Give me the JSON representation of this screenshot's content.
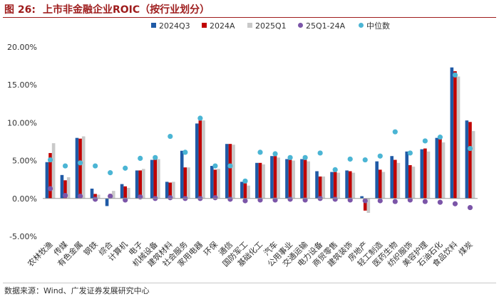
{
  "figure": {
    "number": "图 26:",
    "title": "上市非金融企业ROIC（按行业划分）",
    "source": "数据来源：Wind、广发证券发展研究中心"
  },
  "chart_data": {
    "type": "bar",
    "title": "",
    "xlabel": "",
    "ylabel": "",
    "ylim": [
      -5,
      20
    ],
    "yticks": [
      -5,
      0,
      5,
      10,
      15,
      20
    ],
    "ytick_labels": [
      "-5.00%",
      "0.00%",
      "5.00%",
      "10.00%",
      "15.00%",
      "20.00%"
    ],
    "grid": false,
    "legend_position": "top",
    "categories": [
      "农林牧渔",
      "传媒",
      "有色金属",
      "钢铁",
      "综合",
      "计算机",
      "电子",
      "机械设备",
      "建筑材料",
      "社会服务",
      "家用电器",
      "环保",
      "通信",
      "国防军工",
      "基础化工",
      "汽车",
      "公用事业",
      "交通运输",
      "电力设备",
      "商贸零售",
      "建筑装饰",
      "房地产",
      "轻工制造",
      "医药生物",
      "纺织服饰",
      "美容护理",
      "石油石化",
      "食品饮料",
      "煤炭"
    ],
    "series": [
      {
        "name": "2024Q3",
        "kind": "bar",
        "color": "#1f5aa6",
        "values": [
          4.8,
          3.1,
          8.0,
          1.3,
          -1.0,
          1.9,
          3.7,
          5.1,
          2.2,
          6.3,
          9.9,
          4.3,
          7.2,
          2.2,
          4.7,
          5.6,
          5.2,
          5.2,
          3.6,
          3.5,
          3.7,
          0.3,
          4.9,
          5.6,
          6.2,
          6.5,
          8.0,
          17.3,
          10.3
        ]
      },
      {
        "name": "2024A",
        "kind": "bar",
        "color": "#c00000",
        "values": [
          6.0,
          2.4,
          7.9,
          0.6,
          0.6,
          1.6,
          3.7,
          5.2,
          2.1,
          4.1,
          10.3,
          3.8,
          7.2,
          2.0,
          4.7,
          5.6,
          5.1,
          5.1,
          2.9,
          3.5,
          3.6,
          -1.6,
          3.8,
          5.1,
          4.4,
          6.6,
          7.9,
          16.8,
          10.1
        ]
      },
      {
        "name": "2025Q1",
        "kind": "bar",
        "color": "#c9c9c9",
        "values": [
          7.3,
          2.8,
          8.2,
          0.5,
          1.0,
          1.4,
          3.9,
          5.2,
          2.2,
          4.1,
          10.3,
          3.9,
          7.1,
          1.7,
          4.5,
          5.4,
          5.0,
          4.9,
          2.9,
          3.4,
          3.4,
          -1.9,
          3.5,
          4.7,
          4.2,
          6.2,
          7.4,
          16.1,
          8.9
        ]
      },
      {
        "name": "25Q1-24A",
        "kind": "dot",
        "color": "#7b55a8",
        "values": [
          1.3,
          0.4,
          0.3,
          -0.1,
          0.3,
          -0.2,
          0.2,
          0.0,
          0.1,
          0.0,
          0.0,
          0.1,
          -0.1,
          -0.3,
          -0.2,
          -0.2,
          -0.1,
          -0.2,
          0.0,
          -0.1,
          -0.2,
          -0.3,
          -0.3,
          -0.4,
          -0.2,
          -0.4,
          -0.5,
          -0.7,
          -1.2
        ]
      },
      {
        "name": "中位数",
        "kind": "dot",
        "color": "#4bb5d4",
        "values": [
          5.1,
          4.3,
          4.7,
          4.3,
          3.4,
          4.0,
          5.3,
          5.4,
          8.2,
          6.1,
          10.6,
          4.3,
          4.3,
          2.3,
          6.1,
          5.9,
          5.4,
          5.4,
          6.0,
          3.8,
          5.2,
          5.1,
          5.6,
          8.8,
          6.0,
          7.6,
          8.1,
          16.3,
          6.6
        ]
      }
    ]
  }
}
